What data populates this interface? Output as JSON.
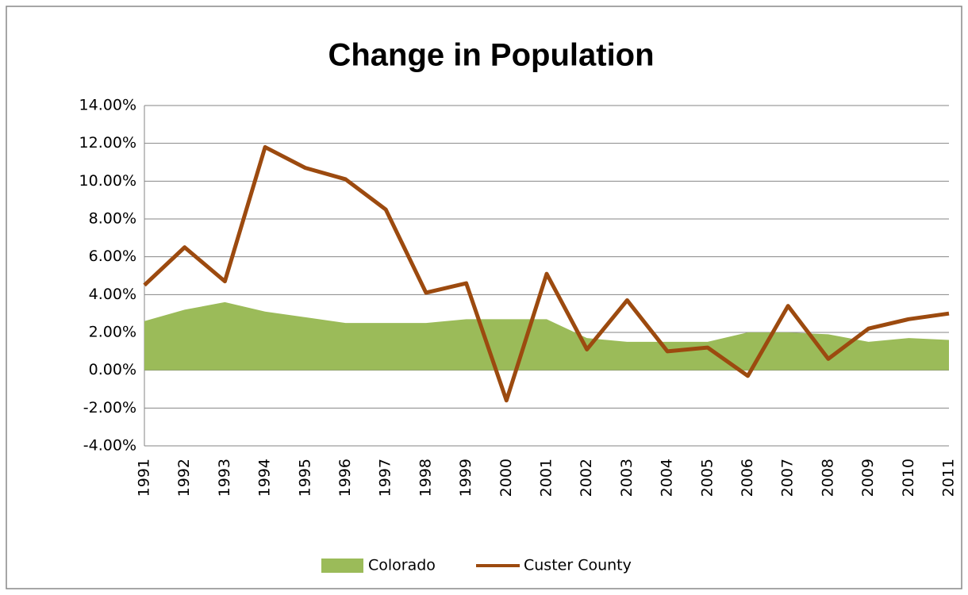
{
  "chart_data": {
    "type": "combo",
    "title": "Change in Population",
    "categories": [
      "1991",
      "1992",
      "1993",
      "1994",
      "1995",
      "1996",
      "1997",
      "1998",
      "1999",
      "2000",
      "2001",
      "2002",
      "2003",
      "2004",
      "2005",
      "2006",
      "2007",
      "2008",
      "2009",
      "2010",
      "2011"
    ],
    "series": [
      {
        "name": "Colorado",
        "kind": "area",
        "color": "#9bbb59",
        "values": [
          2.6,
          3.2,
          3.6,
          3.1,
          2.8,
          2.5,
          2.5,
          2.5,
          2.7,
          2.7,
          2.7,
          1.7,
          1.5,
          1.5,
          1.5,
          2.0,
          2.0,
          1.9,
          1.5,
          1.7,
          1.6
        ]
      },
      {
        "name": "Custer County",
        "kind": "line",
        "color": "#9c4a0f",
        "values": [
          4.5,
          6.5,
          4.7,
          11.8,
          10.7,
          10.1,
          8.5,
          4.1,
          4.6,
          -1.6,
          5.1,
          1.1,
          3.7,
          1.0,
          1.2,
          -0.3,
          3.4,
          0.6,
          2.2,
          2.7,
          3.0
        ]
      }
    ],
    "ylim": [
      -4,
      14
    ],
    "yticks": [
      {
        "value": -4,
        "label": "-4.00%"
      },
      {
        "value": -2,
        "label": "-2.00%"
      },
      {
        "value": 0,
        "label": "0.00%"
      },
      {
        "value": 2,
        "label": "2.00%"
      },
      {
        "value": 4,
        "label": "4.00%"
      },
      {
        "value": 6,
        "label": "6.00%"
      },
      {
        "value": 8,
        "label": "8.00%"
      },
      {
        "value": 10,
        "label": "10.00%"
      },
      {
        "value": 12,
        "label": "12.00%"
      },
      {
        "value": 14,
        "label": "14.00%"
      }
    ],
    "grid": true,
    "legend": "bottom"
  }
}
